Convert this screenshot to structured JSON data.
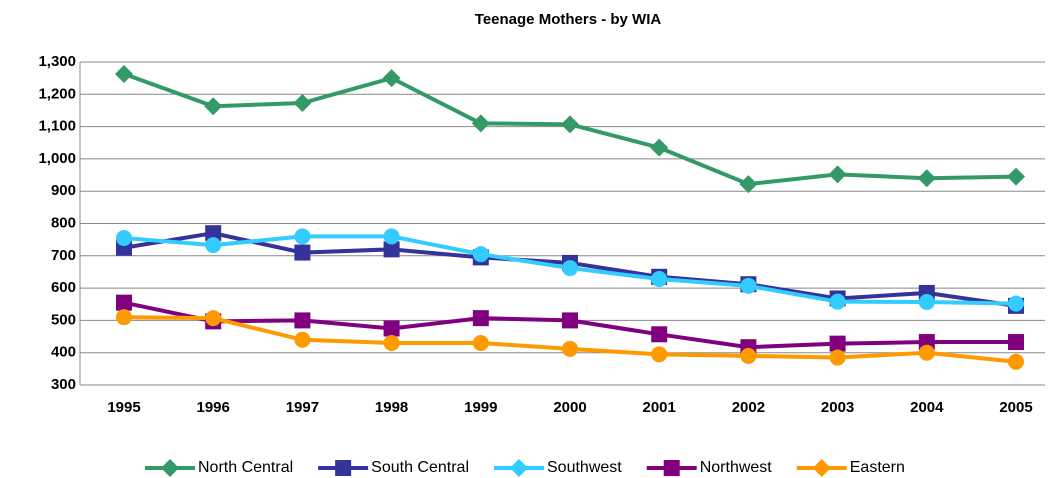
{
  "chart_data": {
    "type": "line",
    "title": "Teenage Mothers - by WIA",
    "categories": [
      "1995",
      "1996",
      "1997",
      "1998",
      "1999",
      "2000",
      "2001",
      "2002",
      "2003",
      "2004",
      "2005"
    ],
    "series": [
      {
        "name": "North Central",
        "color": "#339966",
        "marker": "diamond",
        "values": [
          1263,
          1163,
          1173,
          1250,
          1110,
          1107,
          1035,
          922,
          952,
          940,
          945
        ]
      },
      {
        "name": "South Central",
        "color": "#333399",
        "marker": "square",
        "values": [
          725,
          770,
          710,
          720,
          695,
          678,
          635,
          612,
          568,
          585,
          545
        ]
      },
      {
        "name": "Southwest",
        "color": "#33ccff",
        "marker": "circle",
        "values": [
          755,
          733,
          760,
          760,
          705,
          662,
          628,
          607,
          558,
          557,
          552
        ]
      },
      {
        "name": "Northwest",
        "color": "#800080",
        "marker": "square",
        "values": [
          555,
          497,
          500,
          475,
          507,
          500,
          457,
          417,
          428,
          433,
          433
        ]
      },
      {
        "name": "Eastern",
        "color": "#ff9900",
        "marker": "circle",
        "values": [
          510,
          507,
          440,
          430,
          430,
          412,
          395,
          390,
          385,
          400,
          372
        ]
      }
    ],
    "ylim": [
      300,
      1300
    ],
    "yticks": [
      300,
      400,
      500,
      600,
      700,
      800,
      900,
      {
        "value": 1000,
        "label": "1,000"
      },
      {
        "value": 1100,
        "label": "1,100"
      },
      {
        "value": 1200,
        "label": "1,200"
      },
      {
        "value": 1300,
        "label": "1,300"
      }
    ],
    "grid": true,
    "legend": "bottom"
  }
}
